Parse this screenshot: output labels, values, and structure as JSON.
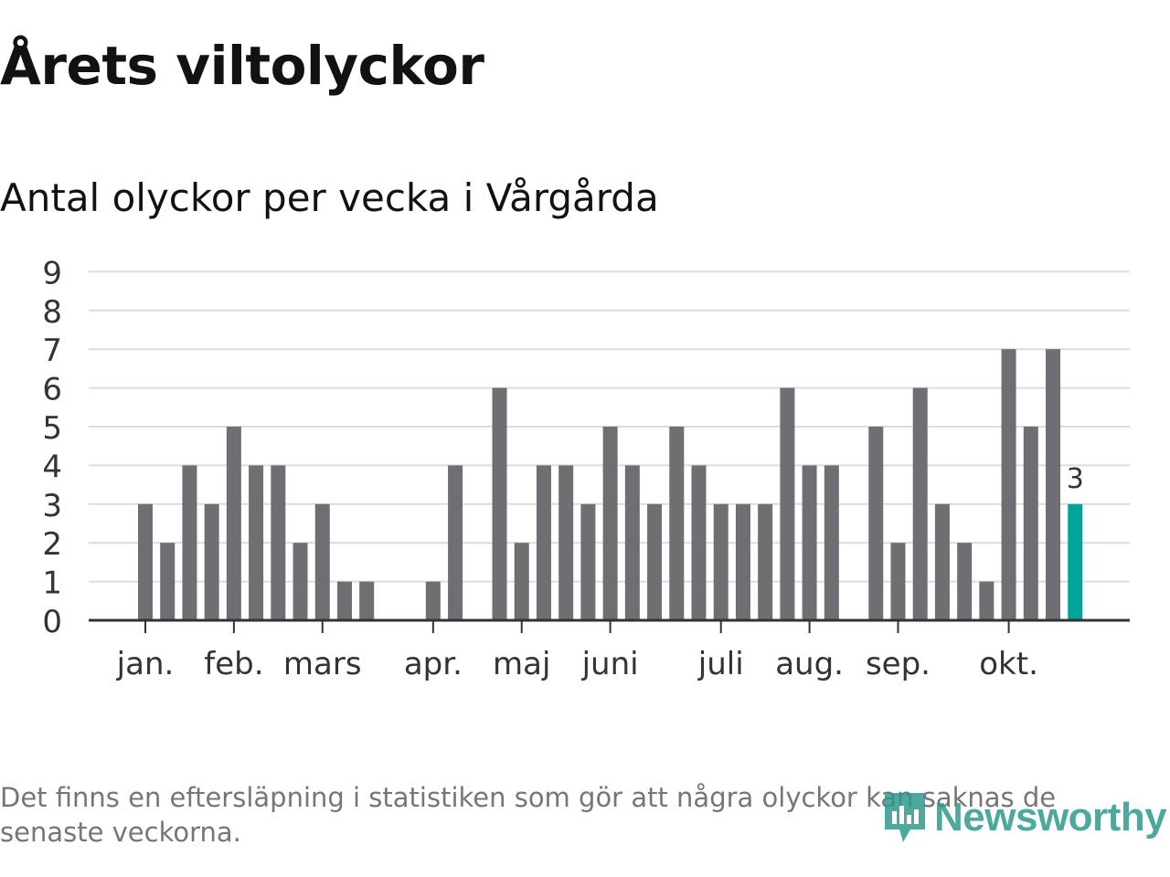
{
  "title": "Årets viltolyckor",
  "subtitle": "Antal olyckor per vecka i Vårgårda",
  "footnote": "Det finns en eftersläpning i statistiken som gör att några olyckor kan saknas de senaste veckorna.",
  "logo": {
    "text": "Newsworthy",
    "icon": "bar-chart-speech-icon"
  },
  "colors": {
    "bar": "#6f6e73",
    "highlight": "#00a499",
    "grid": "#dcdcdc",
    "axis": "#333333",
    "logo": "#2e9a8e"
  },
  "chart_data": {
    "type": "bar",
    "title": "Antal olyckor per vecka i Vårgårda",
    "xlabel": "",
    "ylabel": "",
    "ylim": [
      0,
      9
    ],
    "yticks": [
      0,
      1,
      2,
      3,
      4,
      5,
      6,
      7,
      8,
      9
    ],
    "grid": true,
    "x": [
      1,
      2,
      3,
      4,
      5,
      6,
      7,
      8,
      9,
      10,
      11,
      12,
      13,
      14,
      15,
      16,
      17,
      18,
      19,
      20,
      21,
      22,
      23,
      24,
      25,
      26,
      27,
      28,
      29,
      30,
      31,
      32,
      33,
      34,
      35,
      36,
      37,
      38,
      39,
      40,
      41,
      42,
      43
    ],
    "values": [
      3,
      2,
      4,
      3,
      5,
      4,
      4,
      2,
      3,
      1,
      1,
      0,
      0,
      1,
      4,
      0,
      6,
      2,
      4,
      4,
      3,
      5,
      4,
      3,
      5,
      4,
      3,
      3,
      3,
      6,
      4,
      4,
      0,
      5,
      2,
      6,
      3,
      2,
      1,
      7,
      5,
      7,
      3
    ],
    "highlight_index": 42,
    "highlight_label": "3",
    "month_ticks": [
      {
        "label": "jan.",
        "week": 1
      },
      {
        "label": "feb.",
        "week": 5
      },
      {
        "label": "mars",
        "week": 9
      },
      {
        "label": "apr.",
        "week": 14
      },
      {
        "label": "maj",
        "week": 18
      },
      {
        "label": "juni",
        "week": 22
      },
      {
        "label": "juli",
        "week": 27
      },
      {
        "label": "aug.",
        "week": 31
      },
      {
        "label": "sep.",
        "week": 35
      },
      {
        "label": "okt.",
        "week": 40
      }
    ]
  }
}
